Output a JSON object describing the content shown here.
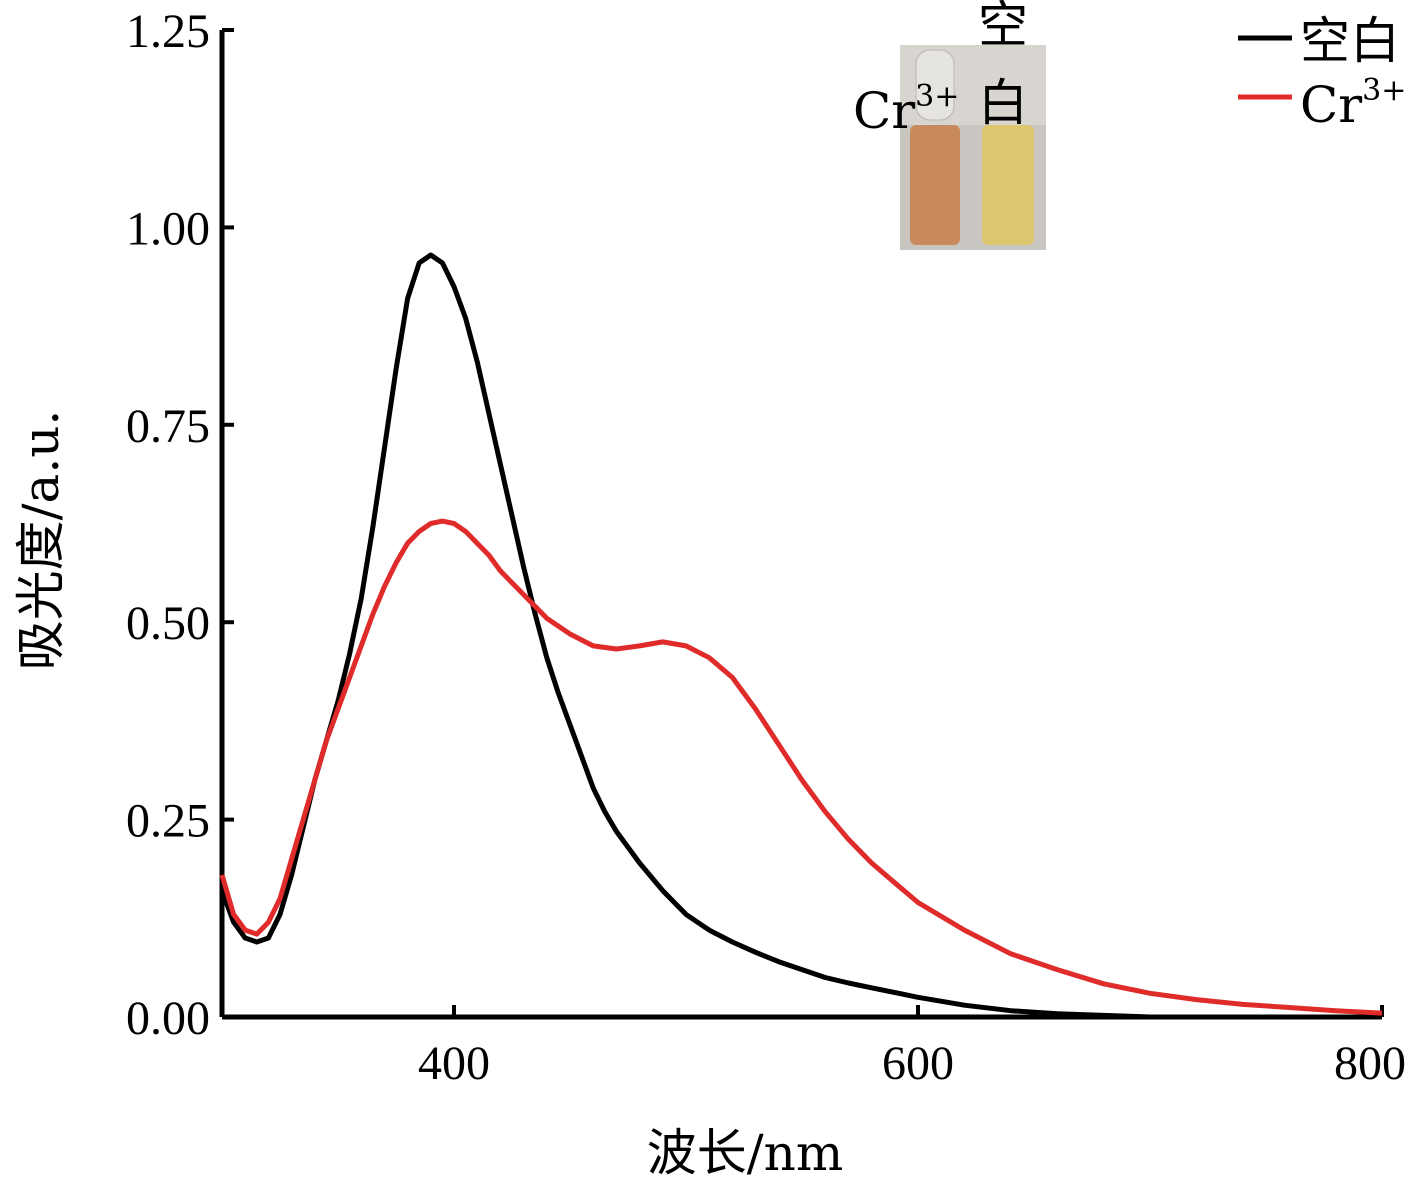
{
  "chart_data": {
    "type": "line",
    "xlabel": "波长/nm",
    "ylabel": "吸光度/a.u.",
    "xlim": [
      300,
      800
    ],
    "ylim": [
      0,
      1.25
    ],
    "xticks": [
      400,
      600,
      800
    ],
    "yticks": [
      0,
      0.25,
      0.5,
      0.75,
      1.0,
      1.25
    ],
    "ytick_labels": [
      "0.00",
      "0.25",
      "0.50",
      "0.75",
      "1.00",
      "1.25"
    ],
    "xtick_labels": [
      "400",
      "600",
      "800"
    ],
    "grid": false,
    "legend_position": "top-right",
    "series": [
      {
        "name": "空白",
        "color": "#000000",
        "x": [
          300,
          305,
          310,
          315,
          320,
          325,
          330,
          335,
          340,
          345,
          350,
          355,
          360,
          365,
          370,
          375,
          380,
          385,
          390,
          395,
          400,
          405,
          410,
          415,
          420,
          425,
          430,
          435,
          440,
          445,
          450,
          455,
          460,
          465,
          470,
          480,
          490,
          500,
          510,
          520,
          530,
          540,
          550,
          560,
          570,
          580,
          600,
          620,
          640,
          660,
          680,
          700,
          720,
          750,
          800
        ],
        "y": [
          0.16,
          0.12,
          0.1,
          0.095,
          0.1,
          0.13,
          0.18,
          0.24,
          0.3,
          0.35,
          0.4,
          0.46,
          0.53,
          0.62,
          0.72,
          0.82,
          0.91,
          0.955,
          0.965,
          0.955,
          0.925,
          0.885,
          0.83,
          0.765,
          0.7,
          0.635,
          0.57,
          0.51,
          0.455,
          0.41,
          0.37,
          0.33,
          0.29,
          0.26,
          0.235,
          0.195,
          0.16,
          0.13,
          0.11,
          0.095,
          0.082,
          0.07,
          0.06,
          0.05,
          0.043,
          0.037,
          0.025,
          0.015,
          0.008,
          0.004,
          0.002,
          0.0,
          0.0,
          0.0,
          0.0
        ]
      },
      {
        "name": "Cr3+",
        "color": "#e02b2b",
        "x": [
          300,
          305,
          310,
          315,
          320,
          325,
          330,
          335,
          340,
          345,
          350,
          355,
          360,
          365,
          370,
          375,
          380,
          385,
          390,
          395,
          400,
          405,
          410,
          415,
          420,
          430,
          440,
          450,
          460,
          470,
          480,
          490,
          500,
          510,
          520,
          530,
          540,
          550,
          560,
          570,
          580,
          590,
          600,
          620,
          640,
          660,
          680,
          700,
          720,
          740,
          760,
          780,
          800
        ],
        "y": [
          0.18,
          0.13,
          0.11,
          0.105,
          0.12,
          0.15,
          0.2,
          0.25,
          0.3,
          0.35,
          0.39,
          0.43,
          0.47,
          0.51,
          0.545,
          0.575,
          0.6,
          0.615,
          0.625,
          0.628,
          0.625,
          0.615,
          0.6,
          0.585,
          0.565,
          0.535,
          0.505,
          0.485,
          0.47,
          0.466,
          0.47,
          0.475,
          0.47,
          0.455,
          0.43,
          0.39,
          0.345,
          0.3,
          0.26,
          0.225,
          0.195,
          0.17,
          0.145,
          0.11,
          0.08,
          0.06,
          0.042,
          0.03,
          0.022,
          0.016,
          0.012,
          0.008,
          0.005
        ]
      }
    ]
  },
  "inset": {
    "label_left": "Cr",
    "label_left_sup": "3+",
    "label_right_line1": "空",
    "label_right_line2": "白",
    "vial_left_color": "#c88a5c",
    "vial_right_color": "#dcc76e"
  },
  "legend": {
    "items": [
      {
        "label": "空白",
        "sup": "",
        "color": "#000000"
      },
      {
        "label": "Cr",
        "sup": "3+",
        "color": "#e02b2b"
      }
    ]
  }
}
